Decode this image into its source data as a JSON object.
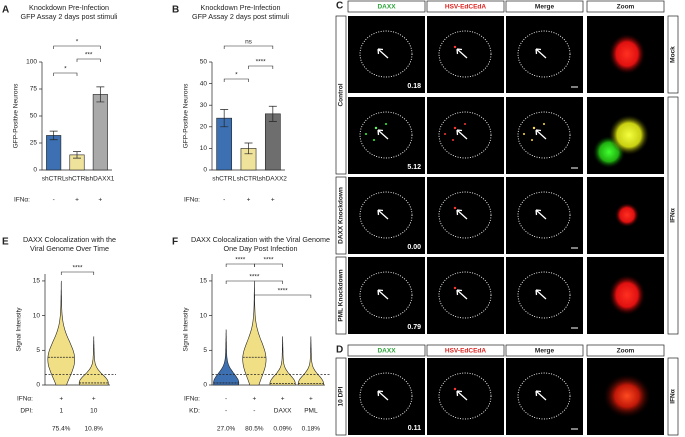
{
  "chart_data": [
    {
      "panel": "A",
      "type": "bar",
      "title": "Knockdown Pre-Infection",
      "subtitle": "GFP Assay 2 days post stimuli",
      "y_label": "GFP-Positive Neurons",
      "categories": [
        "shCTRL",
        "shCTRL",
        "shDAXX1"
      ],
      "values": [
        32,
        14,
        70
      ],
      "errors": [
        4,
        3,
        7
      ],
      "colors": [
        "#3d70b2",
        "#efe29a",
        "#a9a9a9"
      ],
      "ylim": [
        0,
        100
      ],
      "yticks": [
        0,
        25,
        50,
        75,
        100
      ],
      "rows": [
        {
          "label": "IFNα:",
          "values": [
            "-",
            "+",
            "+"
          ]
        }
      ],
      "significance": [
        {
          "from": 0,
          "to": 2,
          "label": "*"
        },
        {
          "from": 0,
          "to": 1,
          "label": "*"
        },
        {
          "from": 1,
          "to": 2,
          "label": "***"
        }
      ]
    },
    {
      "panel": "B",
      "type": "bar",
      "title": "Knockdown Pre-Infection",
      "subtitle": "GFP Assay 2 days post stimuli",
      "y_label": "GFP-Positive Neurons",
      "categories": [
        "shCTRL",
        "shCTRL",
        "shDAXX2"
      ],
      "values": [
        24,
        10,
        26
      ],
      "errors": [
        4,
        2.5,
        3.5
      ],
      "colors": [
        "#3d70b2",
        "#efe29a",
        "#6e6e6e"
      ],
      "ylim": [
        0,
        50
      ],
      "yticks": [
        0,
        10,
        20,
        30,
        40,
        50
      ],
      "rows": [
        {
          "label": "IFNα:",
          "values": [
            "-",
            "+",
            "+"
          ]
        }
      ],
      "significance": [
        {
          "from": 0,
          "to": 2,
          "label": "ns"
        },
        {
          "from": 0,
          "to": 1,
          "label": "*"
        },
        {
          "from": 1,
          "to": 2,
          "label": "****"
        }
      ]
    },
    {
      "panel": "E",
      "type": "violin",
      "title": [
        "DAXX Colocalization with the",
        "Viral Genome Over Time"
      ],
      "y_label": "Signal Intensity",
      "medians": [
        4,
        0.3
      ],
      "max": [
        15,
        7
      ],
      "colors": [
        "#f1df86",
        "#f1df86"
      ],
      "ylim": [
        0,
        16
      ],
      "yticks": [
        0,
        5,
        10,
        15
      ],
      "threshold": 1.5,
      "rows": [
        {
          "label": "IFNα:",
          "values": [
            "+",
            "+"
          ]
        },
        {
          "label": "DPI:",
          "values": [
            "1",
            "10"
          ]
        }
      ],
      "percentages": [
        "75.4%",
        "10.8%"
      ],
      "significance": [
        {
          "from": 0,
          "to": 1,
          "label": "****"
        }
      ]
    },
    {
      "panel": "F",
      "type": "violin",
      "title": [
        "DAXX Colocalization with the Viral Genome",
        "One Day Post Infection"
      ],
      "y_label": "Signal Intensity",
      "medians": [
        0.3,
        4,
        0.2,
        0.2
      ],
      "max": [
        8,
        15,
        7,
        7
      ],
      "colors": [
        "#3d70b2",
        "#f1df86",
        "#f1df86",
        "#f1df86"
      ],
      "ylim": [
        0,
        16
      ],
      "yticks": [
        0,
        5,
        10,
        15
      ],
      "threshold": 1.5,
      "rows": [
        {
          "label": "IFNα:",
          "values": [
            "-",
            "+",
            "+",
            "+"
          ]
        },
        {
          "label": "KD:",
          "values": [
            "-",
            "-",
            "DAXX",
            "PML"
          ]
        }
      ],
      "percentages": [
        "27.0%",
        "80.5%",
        "0.09%",
        "0.18%"
      ],
      "significance": [
        {
          "from": 0,
          "to": 1,
          "label": "****"
        },
        {
          "from": 1,
          "to": 2,
          "label": "****"
        },
        {
          "from": 0,
          "to": 2,
          "label": "****"
        },
        {
          "from": 1,
          "to": 3,
          "label": "****"
        }
      ]
    }
  ],
  "images": {
    "panel_c": "C",
    "panel_d": "D",
    "columns": [
      "DAXX",
      "HSV-EdCEdA",
      "Merge",
      "Zoom"
    ],
    "c_groups": [
      "Control",
      "DAXX Knockdown",
      "PML Knockdown"
    ],
    "c_scores": [
      "0.18",
      "5.12",
      "0.00",
      "0.79"
    ],
    "c_conditions": [
      "Mock",
      "IFNα"
    ],
    "d_row": "10 DPI",
    "d_condition": "IFNα",
    "d_score": "0.11"
  }
}
